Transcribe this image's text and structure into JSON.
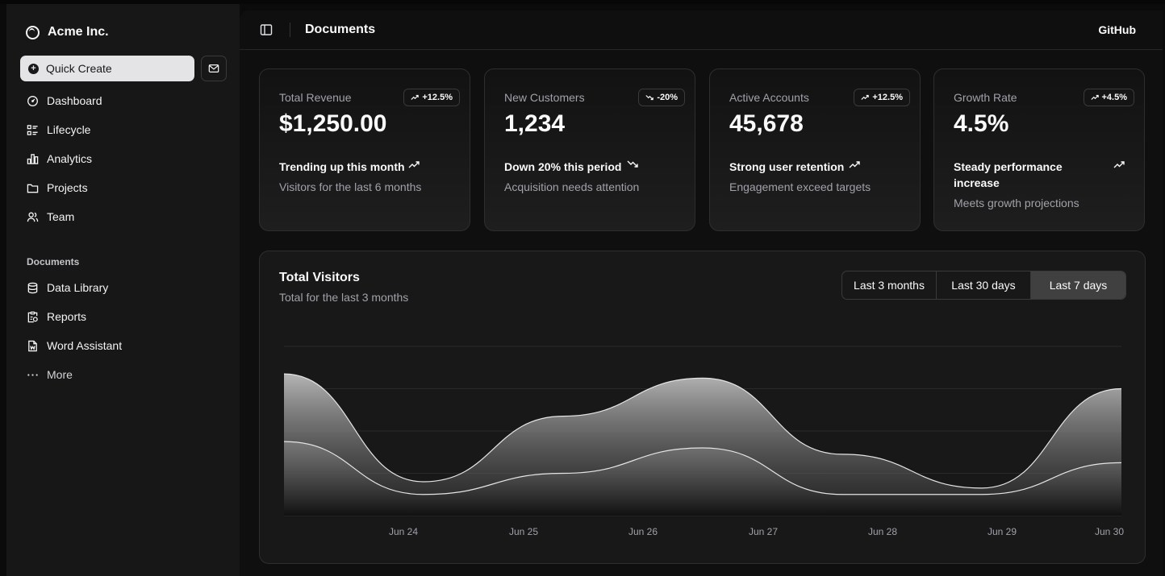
{
  "sidebar": {
    "brand": "Acme Inc.",
    "quick_create": "Quick Create",
    "main_items": [
      {
        "label": "Dashboard",
        "icon": "gauge-icon"
      },
      {
        "label": "Lifecycle",
        "icon": "list-details-icon"
      },
      {
        "label": "Analytics",
        "icon": "chart-bar-icon"
      },
      {
        "label": "Projects",
        "icon": "folder-icon"
      },
      {
        "label": "Team",
        "icon": "users-icon"
      }
    ],
    "documents_label": "Documents",
    "document_items": [
      {
        "label": "Data Library",
        "icon": "database-icon"
      },
      {
        "label": "Reports",
        "icon": "report-icon"
      },
      {
        "label": "Word Assistant",
        "icon": "file-word-icon"
      },
      {
        "label": "More",
        "icon": "dots-icon"
      }
    ]
  },
  "header": {
    "title": "Documents",
    "github": "GitHub"
  },
  "cards": [
    {
      "label": "Total Revenue",
      "value": "$1,250.00",
      "badge": "+12.5%",
      "trend": "up",
      "footer": "Trending up this month",
      "sub": "Visitors for the last 6 months"
    },
    {
      "label": "New Customers",
      "value": "1,234",
      "badge": "-20%",
      "trend": "down",
      "footer": "Down 20% this period",
      "sub": "Acquisition needs attention"
    },
    {
      "label": "Active Accounts",
      "value": "45,678",
      "badge": "+12.5%",
      "trend": "up",
      "footer": "Strong user retention",
      "sub": "Engagement exceed targets"
    },
    {
      "label": "Growth Rate",
      "value": "4.5%",
      "badge": "+4.5%",
      "trend": "up",
      "footer": "Steady performance increase",
      "sub": "Meets growth projections"
    }
  ],
  "visitors": {
    "title": "Total Visitors",
    "subtitle": "Total for the last 3 months",
    "ranges": [
      "Last 3 months",
      "Last 30 days",
      "Last 7 days"
    ],
    "selected_range": "Last 7 days"
  },
  "colors": {
    "accent": "#fafafa",
    "muted": "#a1a1aa",
    "border": "#2e2e2e"
  },
  "chart_data": {
    "type": "area",
    "categories": [
      "Jun 24",
      "Jun 25",
      "Jun 26",
      "Jun 27",
      "Jun 28",
      "Jun 29",
      "Jun 30"
    ],
    "series": [
      {
        "values": [
          335,
          80,
          235,
          325,
          145,
          65,
          300
        ]
      },
      {
        "values": [
          175,
          50,
          100,
          160,
          50,
          50,
          125
        ]
      }
    ],
    "ylim": [
      0,
      400
    ]
  }
}
